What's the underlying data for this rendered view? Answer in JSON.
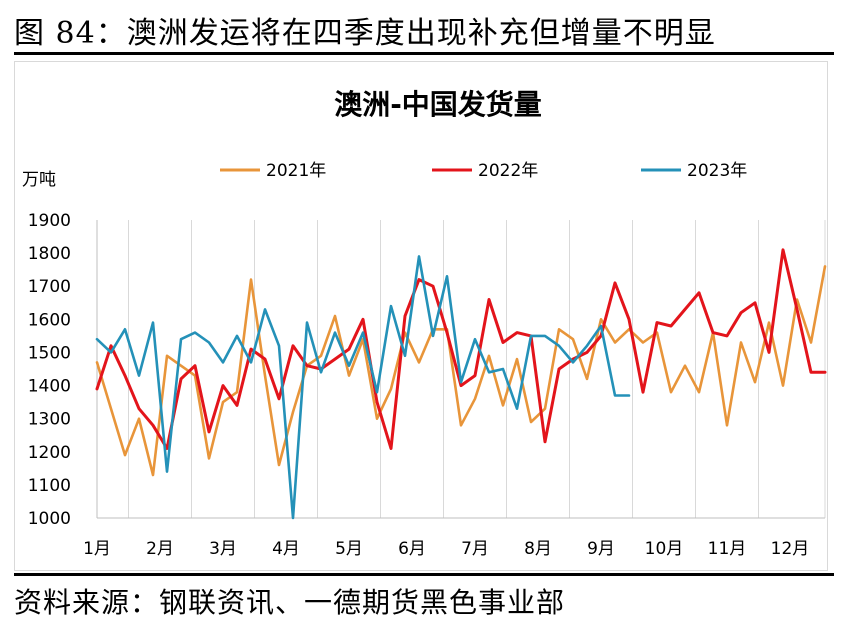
{
  "figure": {
    "title": "图 84：澳洲发运将在四季度出现补充但增量不明显",
    "source": "资料来源：钢联资讯、一德期货黑色事业部"
  },
  "chart_data": {
    "type": "line",
    "title": "澳洲-中国发货量",
    "ylabel": "万吨",
    "xlabel": "",
    "ylim": [
      1000,
      1900
    ],
    "yticks": [
      1000,
      1100,
      1200,
      1300,
      1400,
      1500,
      1600,
      1700,
      1800,
      1900
    ],
    "xlim": [
      1,
      53
    ],
    "xtick_labels": [
      "1月",
      "2月",
      "3月",
      "4月",
      "5月",
      "6月",
      "7月",
      "8月",
      "9月",
      "10月",
      "11月",
      "12月"
    ],
    "xtick_weeks": [
      1,
      5.5,
      10,
      14.5,
      19,
      23.5,
      28,
      32.5,
      37,
      41.5,
      46,
      50.5
    ],
    "grid_x": true,
    "grid_y": false,
    "legend_position": "top",
    "series": [
      {
        "name": "2021年",
        "color": "#E8953A",
        "x": [
          1,
          2,
          3,
          4,
          5,
          6,
          7,
          8,
          9,
          10,
          11,
          12,
          13,
          14,
          15,
          16,
          17,
          18,
          19,
          20,
          21,
          22,
          23,
          24,
          25,
          26,
          27,
          28,
          29,
          30,
          31,
          32,
          33,
          34,
          35,
          36,
          37,
          38,
          39,
          40,
          41,
          42,
          43,
          44,
          45,
          46,
          47,
          48,
          49,
          50,
          51,
          52,
          53
        ],
        "values": [
          1470,
          1330,
          1190,
          1300,
          1130,
          1490,
          1460,
          1430,
          1180,
          1350,
          1380,
          1720,
          1430,
          1160,
          1320,
          1460,
          1490,
          1610,
          1430,
          1540,
          1300,
          1390,
          1560,
          1470,
          1570,
          1570,
          1280,
          1360,
          1490,
          1340,
          1480,
          1290,
          1330,
          1570,
          1540,
          1420,
          1600,
          1530,
          1570,
          1530,
          1560,
          1380,
          1460,
          1380,
          1560,
          1280,
          1530,
          1410,
          1590,
          1400,
          1660,
          1530,
          1760
        ]
      },
      {
        "name": "2022年",
        "color": "#E3141B",
        "x": [
          1,
          2,
          3,
          4,
          5,
          6,
          7,
          8,
          9,
          10,
          11,
          12,
          13,
          14,
          15,
          16,
          17,
          18,
          19,
          20,
          21,
          22,
          23,
          24,
          25,
          26,
          27,
          28,
          29,
          30,
          31,
          32,
          33,
          34,
          35,
          36,
          37,
          38,
          39,
          40,
          41,
          42,
          43,
          44,
          45,
          46,
          47,
          48,
          49,
          50,
          51,
          52,
          53
        ],
        "values": [
          1390,
          1520,
          1430,
          1330,
          1280,
          1210,
          1420,
          1460,
          1260,
          1400,
          1340,
          1510,
          1480,
          1360,
          1520,
          1460,
          1450,
          1480,
          1510,
          1600,
          1350,
          1210,
          1610,
          1720,
          1700,
          1560,
          1400,
          1430,
          1660,
          1530,
          1560,
          1550,
          1230,
          1450,
          1480,
          1500,
          1550,
          1710,
          1600,
          1380,
          1590,
          1580,
          1630,
          1680,
          1560,
          1550,
          1620,
          1650,
          1500,
          1810,
          1630,
          1440,
          1440
        ]
      },
      {
        "name": "2023年",
        "color": "#2491B8",
        "x": [
          1,
          2,
          3,
          4,
          5,
          6,
          7,
          8,
          9,
          10,
          11,
          12,
          13,
          14,
          15,
          16,
          17,
          18,
          19,
          20,
          21,
          22,
          23,
          24,
          25,
          26,
          27,
          28,
          29,
          30,
          31,
          32,
          33,
          34,
          35,
          36,
          37,
          38,
          39
        ],
        "values": [
          1540,
          1500,
          1570,
          1430,
          1590,
          1140,
          1540,
          1560,
          1530,
          1470,
          1550,
          1470,
          1630,
          1520,
          1000,
          1590,
          1440,
          1560,
          1460,
          1560,
          1380,
          1640,
          1490,
          1790,
          1550,
          1730,
          1410,
          1540,
          1440,
          1450,
          1330,
          1550,
          1550,
          1520,
          1470,
          1520,
          1580,
          1370,
          1370
        ]
      }
    ]
  }
}
